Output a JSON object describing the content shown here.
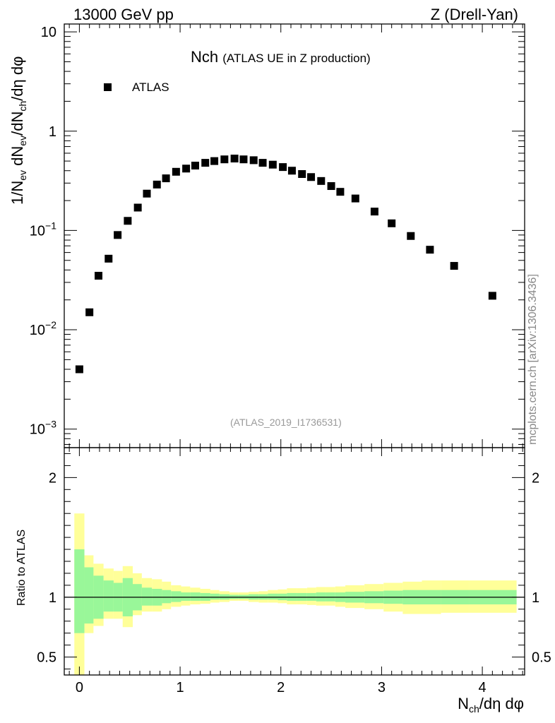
{
  "header": {
    "left": "13000 GeV pp",
    "right": "Z (Drell-Yan)"
  },
  "title": {
    "main": "Nch",
    "sub": "(ATLAS UE in Z production)"
  },
  "reference_label": "(ATLAS_2019_I1736531)",
  "legend": {
    "label": "ATLAS"
  },
  "side_label": "mcplots.cern.ch [arXiv:1306.3436]",
  "axes": {
    "top_ylabel": {
      "main": "1/N",
      "s1": "ev",
      "mid1": " dN",
      "s2": "ev",
      "mid2": "/dN",
      "s3": "ch",
      "tail": "/dη dφ"
    },
    "bottom_ylabel": "Ratio to ATLAS",
    "xlabel": {
      "main": "N",
      "s1": "ch",
      "tail": "/dη dφ"
    }
  },
  "colors": {
    "marker": "#000000",
    "band_inner": "#99f799",
    "band_outer": "#ffff99",
    "ref_text": "#999999"
  },
  "chart_data": [
    {
      "type": "scatter",
      "title": "Nch (ATLAS UE in Z production)",
      "xlabel": "N_ch/dη dφ",
      "ylabel": "1/N_ev dN_ev/dN_ch/dη dφ",
      "log_y": true,
      "xlim": [
        -0.15,
        4.42
      ],
      "ylim": [
        0.00065,
        12
      ],
      "x_ticks": [
        "0",
        "1",
        "2",
        "3",
        "4"
      ],
      "y_ticks": [
        "10^-3",
        "10^-2",
        "10^-1",
        "1",
        "10"
      ],
      "series": [
        {
          "name": "ATLAS",
          "marker": "square",
          "x": [
            0.0,
            0.1,
            0.19,
            0.29,
            0.38,
            0.48,
            0.58,
            0.67,
            0.77,
            0.86,
            0.96,
            1.06,
            1.15,
            1.25,
            1.34,
            1.44,
            1.54,
            1.63,
            1.73,
            1.82,
            1.92,
            2.02,
            2.11,
            2.21,
            2.3,
            2.4,
            2.5,
            2.59,
            2.74,
            2.93,
            3.1,
            3.29,
            3.48,
            3.72,
            4.1
          ],
          "y": [
            0.004,
            0.015,
            0.035,
            0.052,
            0.09,
            0.125,
            0.17,
            0.235,
            0.29,
            0.335,
            0.39,
            0.42,
            0.45,
            0.48,
            0.5,
            0.52,
            0.53,
            0.52,
            0.51,
            0.48,
            0.46,
            0.435,
            0.4,
            0.37,
            0.345,
            0.315,
            0.28,
            0.245,
            0.21,
            0.155,
            0.118,
            0.088,
            0.064,
            0.044,
            0.022
          ]
        }
      ]
    },
    {
      "type": "area",
      "ylabel": "Ratio to ATLAS",
      "xlim": [
        -0.15,
        4.42
      ],
      "ylim": [
        0.35,
        2.25
      ],
      "y_ticks": [
        "0.5",
        "1",
        "2"
      ],
      "reference_line": 1,
      "bins": [
        -0.05,
        0.05,
        0.14,
        0.24,
        0.34,
        0.43,
        0.53,
        0.62,
        0.72,
        0.82,
        0.91,
        1.01,
        1.1,
        1.2,
        1.3,
        1.39,
        1.49,
        1.58,
        1.68,
        1.78,
        1.87,
        1.97,
        2.06,
        2.16,
        2.26,
        2.35,
        2.45,
        2.54,
        2.64,
        2.83,
        3.02,
        3.21,
        3.4,
        3.59,
        3.87,
        4.34
      ],
      "inner_band": {
        "lo": [
          0.7,
          0.78,
          0.82,
          0.88,
          0.88,
          0.84,
          0.89,
          0.93,
          0.93,
          0.95,
          0.96,
          0.97,
          0.97,
          0.97,
          0.98,
          0.98,
          0.985,
          0.985,
          0.98,
          0.98,
          0.98,
          0.975,
          0.97,
          0.97,
          0.97,
          0.965,
          0.965,
          0.96,
          0.955,
          0.95,
          0.945,
          0.94,
          0.94,
          0.94,
          0.94
        ],
        "hi": [
          1.4,
          1.25,
          1.18,
          1.14,
          1.12,
          1.16,
          1.11,
          1.08,
          1.07,
          1.06,
          1.05,
          1.04,
          1.04,
          1.035,
          1.03,
          1.025,
          1.02,
          1.02,
          1.025,
          1.025,
          1.03,
          1.03,
          1.035,
          1.035,
          1.035,
          1.04,
          1.04,
          1.04,
          1.045,
          1.05,
          1.055,
          1.06,
          1.06,
          1.06,
          1.06
        ]
      },
      "outer_band": {
        "lo": [
          0.3,
          0.7,
          0.76,
          0.82,
          0.82,
          0.75,
          0.85,
          0.88,
          0.88,
          0.9,
          0.92,
          0.93,
          0.94,
          0.945,
          0.955,
          0.96,
          0.97,
          0.97,
          0.96,
          0.955,
          0.955,
          0.95,
          0.94,
          0.94,
          0.935,
          0.93,
          0.93,
          0.92,
          0.91,
          0.9,
          0.88,
          0.86,
          0.86,
          0.87,
          0.87
        ],
        "hi": [
          1.7,
          1.35,
          1.28,
          1.24,
          1.22,
          1.26,
          1.2,
          1.16,
          1.15,
          1.13,
          1.1,
          1.09,
          1.08,
          1.07,
          1.06,
          1.05,
          1.04,
          1.04,
          1.045,
          1.05,
          1.06,
          1.065,
          1.075,
          1.075,
          1.08,
          1.085,
          1.085,
          1.09,
          1.1,
          1.11,
          1.12,
          1.13,
          1.14,
          1.14,
          1.14
        ]
      }
    }
  ]
}
